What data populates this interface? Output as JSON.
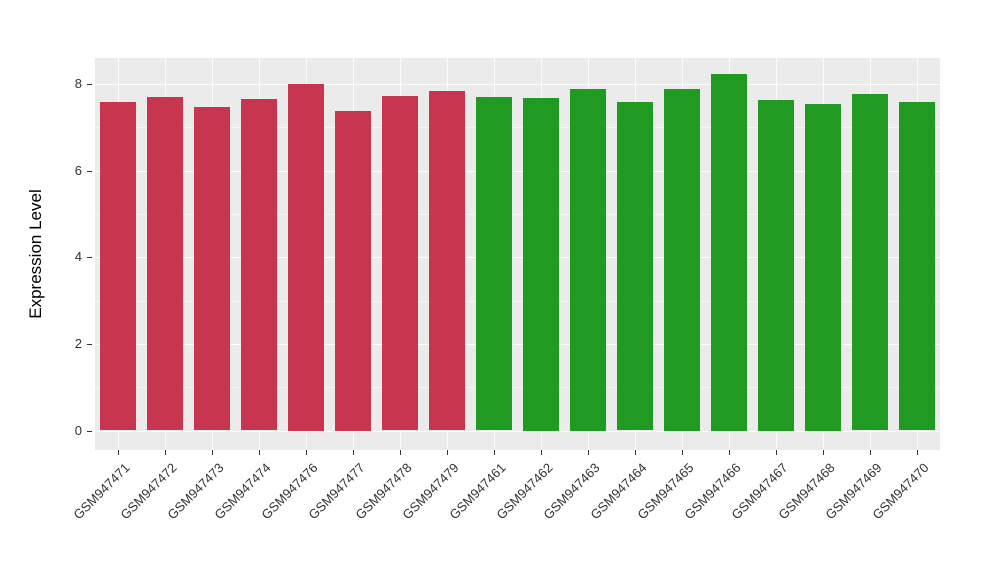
{
  "chart_data": {
    "type": "bar",
    "title": "",
    "xlabel": "",
    "ylabel": "Expression Level",
    "ylim": [
      0,
      8.6
    ],
    "y_display_min": -0.45,
    "yticks": [
      0,
      2,
      4,
      6,
      8
    ],
    "yticks_minor": [
      1,
      3,
      5,
      7
    ],
    "grid": "on",
    "legend": "none",
    "panel_bg": "#EBEBEB",
    "categories": [
      "GSM947471",
      "GSM947472",
      "GSM947473",
      "GSM947474",
      "GSM947476",
      "GSM947477",
      "GSM947478",
      "GSM947479",
      "GSM947461",
      "GSM947462",
      "GSM947463",
      "GSM947464",
      "GSM947465",
      "GSM947466",
      "GSM947467",
      "GSM947468",
      "GSM947469",
      "GSM947470"
    ],
    "values": [
      7.58,
      7.7,
      7.48,
      7.66,
      8.0,
      7.38,
      7.73,
      7.83,
      7.7,
      7.68,
      7.89,
      7.58,
      7.89,
      8.22,
      7.64,
      7.53,
      7.77,
      7.58
    ],
    "groups": [
      "red",
      "red",
      "red",
      "red",
      "red",
      "red",
      "red",
      "red",
      "green",
      "green",
      "green",
      "green",
      "green",
      "green",
      "green",
      "green",
      "green",
      "green"
    ],
    "group_colors": {
      "red": "#C8354F",
      "green": "#219A21"
    }
  }
}
